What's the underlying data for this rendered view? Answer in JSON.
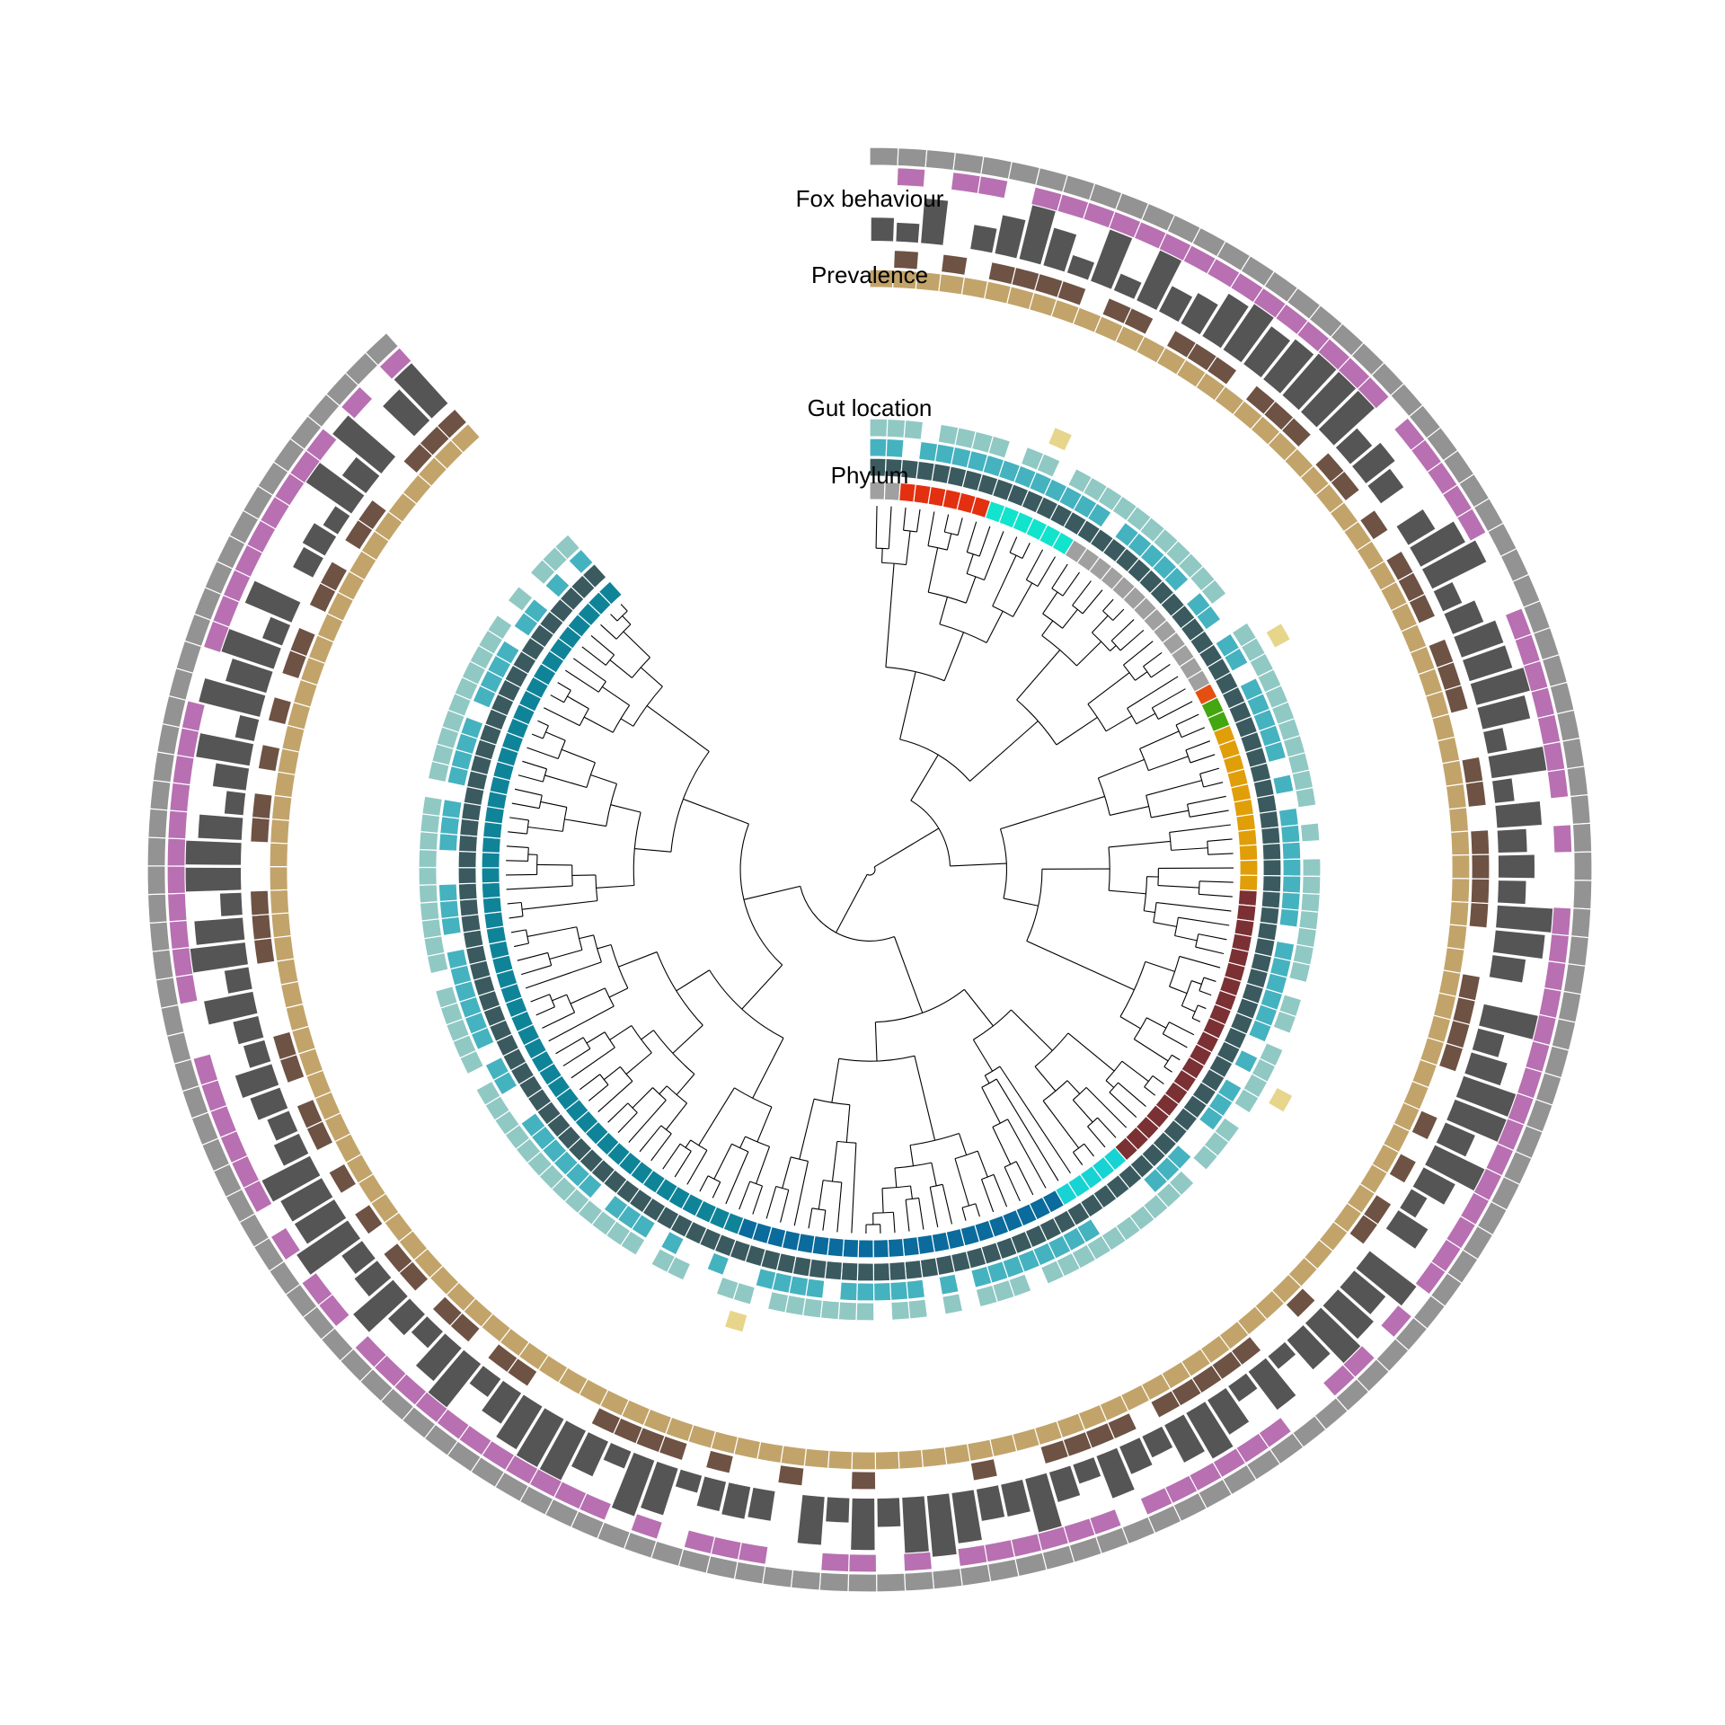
{
  "labels": {
    "fox_behaviour": "Fox behaviour",
    "prevalence": "Prevalence",
    "gut_location": "Gut location",
    "phylum": "Phylum"
  },
  "colors": {
    "branch": "#000000",
    "phylum": [
      "#a0a0a0",
      "#e33010",
      "#12e3cc",
      "#e55012",
      "#44a610",
      "#e09e08",
      "#7b3034",
      "#18d3d3",
      "#0a6b9c",
      "#0f8499"
    ],
    "gut_outer": "#90c8c4",
    "gut_middle": "#45b2c0",
    "gut_inner": "#3a5a5f",
    "gut_extra": "#e8d58c",
    "tan_band": "#c2a46a",
    "brown_band": "#6e5244",
    "prevalence": "#555555",
    "fox_inner": "#b870b2",
    "fox_outer": "#939393"
  },
  "chart_data": {
    "type": "circular-tree-heatmap",
    "rings": [
      "Phylum",
      "Gut location",
      "Prevalence",
      "Fox behaviour"
    ],
    "tips": 140,
    "phylum_segments": [
      {
        "color_index": 0,
        "tips": 2
      },
      {
        "color_index": 1,
        "tips": 6
      },
      {
        "color_index": 2,
        "tips": 6
      },
      {
        "color_index": 0,
        "tips": 13
      },
      {
        "color_index": 3,
        "tips": 1
      },
      {
        "color_index": 4,
        "tips": 2
      },
      {
        "color_index": 5,
        "tips": 11
      },
      {
        "color_index": 6,
        "tips": 20
      },
      {
        "color_index": 7,
        "tips": 5
      },
      {
        "color_index": 8,
        "tips": 22
      },
      {
        "color_index": 9,
        "tips": 52
      }
    ]
  }
}
